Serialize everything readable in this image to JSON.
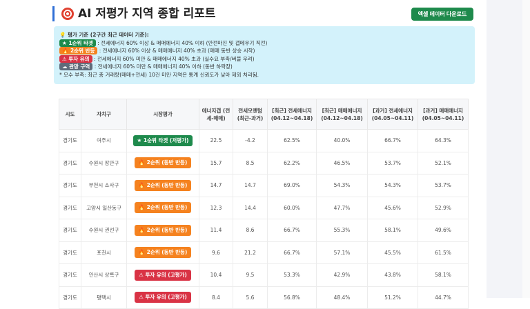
{
  "header": {
    "title": "AI 저평가 지역 종합 리포트",
    "title_icon": "target-icon",
    "download_label": "엑셀 데이터 다운로드"
  },
  "criteria": {
    "heading": "평가 기준 (2구간 최근 데이터 기준):",
    "items": [
      {
        "badge": "1순위 타겟",
        "icon": "star-icon",
        "color": "#1e8a4c",
        "desc": ": 전세에너지 60% 이상 & 매매에너지 40% 이하 (안전마진 및 갭메우기 직전)"
      },
      {
        "badge": "2순위 반등",
        "icon": "fire-icon",
        "color": "#f5821f",
        "desc": ": 전세에너지 60% 이상 & 매매에너지 40% 초과 (매매 동반 상승 시작)"
      },
      {
        "badge": "투자 유의",
        "icon": "warning-icon",
        "color": "#d93345",
        "desc": ": 전세에너지 60% 미만 & 매매에너지 40% 초과 (실수요 부족/버블 우려)"
      },
      {
        "badge": "관망 구역",
        "icon": "cloud-icon",
        "color": "#5f6b7a",
        "desc": ": 전세에너지 60% 미만 & 매매에너지 40% 이하 (동반 하락장)"
      }
    ],
    "note": "* 모수 부족: 최근 총 거래량(매매+전세) 10건 미만 지역은 통계 신뢰도가 낮아 제외 처리됨."
  },
  "table": {
    "headers": [
      "시도",
      "자치구",
      "시장평가",
      "에너지갭 (전세-매매)",
      "전세모멘텀 (최근-과거)",
      "[최근] 전세에너지 (04.12~04.18)",
      "[최근] 매매에너지 (04.12~04.18)",
      "[과거] 전세에너지 (04.05~04.11)",
      "[과거] 매매에너지 (04.05~04.11)"
    ],
    "rows": [
      {
        "sido": "경기도",
        "gu": "여주시",
        "eval": "1순위 타겟 (저평가)",
        "cls": "g",
        "icon": "★",
        "gap": "22.5",
        "mom": "-4.2",
        "rj": "62.5%",
        "rm": "40.0%",
        "pj": "66.7%",
        "pm": "64.3%"
      },
      {
        "sido": "경기도",
        "gu": "수원시 장안구",
        "eval": "2순위 (동반 반등)",
        "cls": "o",
        "icon": "🔥",
        "gap": "15.7",
        "mom": "8.5",
        "rj": "62.2%",
        "rm": "46.5%",
        "pj": "53.7%",
        "pm": "52.1%"
      },
      {
        "sido": "경기도",
        "gu": "부천시 소사구",
        "eval": "2순위 (동반 반등)",
        "cls": "o",
        "icon": "🔥",
        "gap": "14.7",
        "mom": "14.7",
        "rj": "69.0%",
        "rm": "54.3%",
        "pj": "54.3%",
        "pm": "53.7%"
      },
      {
        "sido": "경기도",
        "gu": "고양시 일산동구",
        "eval": "2순위 (동반 반등)",
        "cls": "o",
        "icon": "🔥",
        "gap": "12.3",
        "mom": "14.4",
        "rj": "60.0%",
        "rm": "47.7%",
        "pj": "45.6%",
        "pm": "52.9%"
      },
      {
        "sido": "경기도",
        "gu": "수원시 권선구",
        "eval": "2순위 (동반 반등)",
        "cls": "o",
        "icon": "🔥",
        "gap": "11.4",
        "mom": "8.6",
        "rj": "66.7%",
        "rm": "55.3%",
        "pj": "58.1%",
        "pm": "49.6%"
      },
      {
        "sido": "경기도",
        "gu": "포천시",
        "eval": "2순위 (동반 반등)",
        "cls": "o",
        "icon": "🔥",
        "gap": "9.6",
        "mom": "21.2",
        "rj": "66.7%",
        "rm": "57.1%",
        "pj": "45.5%",
        "pm": "61.5%"
      },
      {
        "sido": "경기도",
        "gu": "안산시 상록구",
        "eval": "투자 유의 (고평가)",
        "cls": "r",
        "icon": "⚠",
        "gap": "10.4",
        "mom": "9.5",
        "rj": "53.3%",
        "rm": "42.9%",
        "pj": "43.8%",
        "pm": "58.1%"
      },
      {
        "sido": "경기도",
        "gu": "평택시",
        "eval": "투자 유의 (고평가)",
        "cls": "r",
        "icon": "⚠",
        "gap": "8.4",
        "mom": "5.6",
        "rj": "56.8%",
        "rm": "48.4%",
        "pj": "51.2%",
        "pm": "44.7%"
      }
    ]
  }
}
